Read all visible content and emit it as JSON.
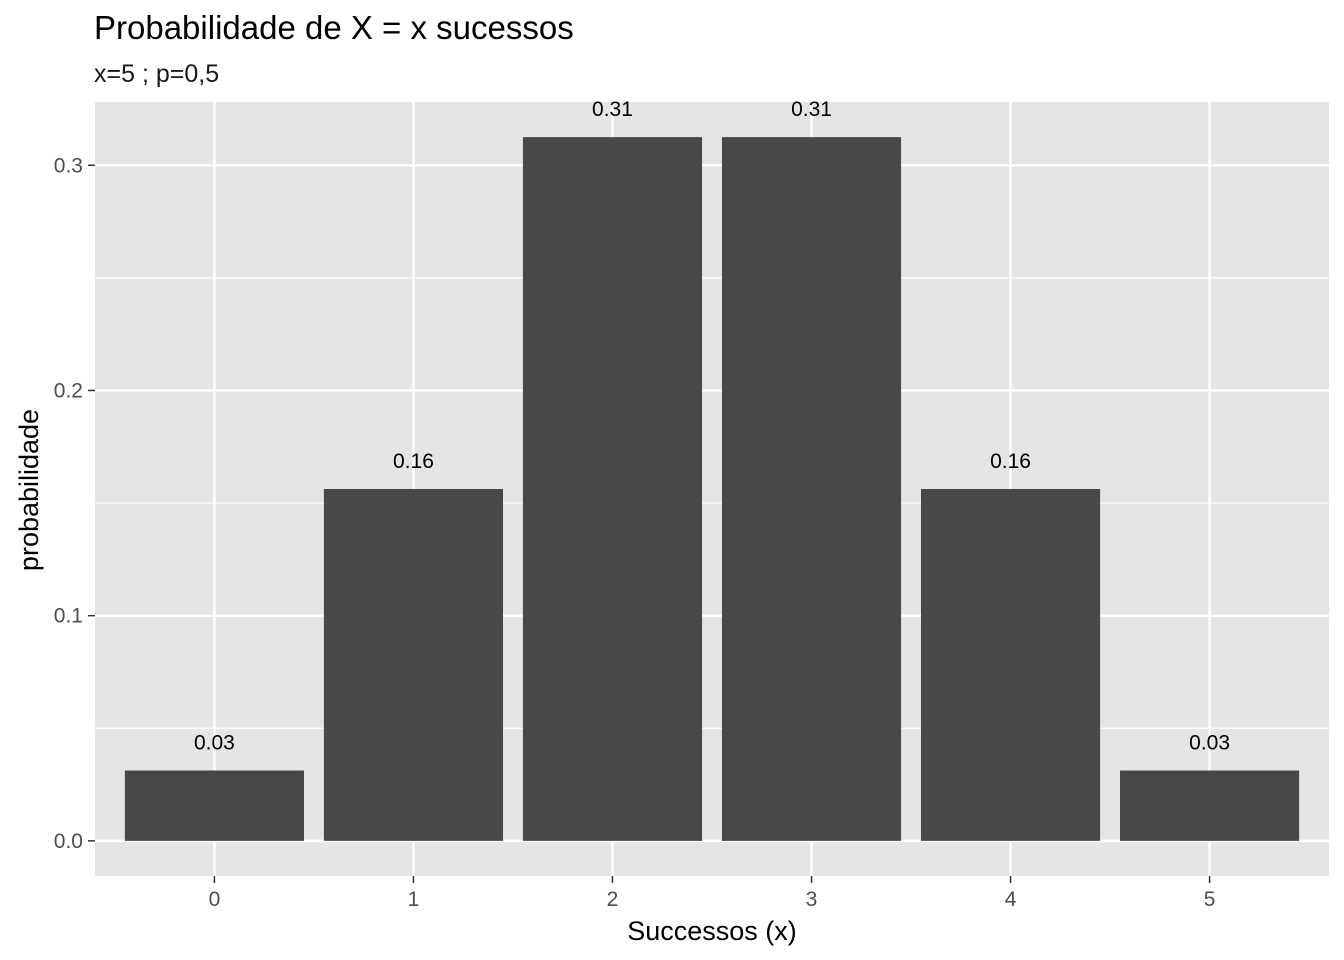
{
  "chart_data": {
    "type": "bar",
    "title": "Probabilidade de X = x sucessos",
    "subtitle": "x=5 ; p=0,5",
    "xlabel": "Successos (x)",
    "ylabel": "probabilidade",
    "categories": [
      "0",
      "1",
      "2",
      "3",
      "4",
      "5"
    ],
    "values": [
      0.03125,
      0.15625,
      0.3125,
      0.3125,
      0.15625,
      0.03125
    ],
    "data_labels": [
      "0.03",
      "0.16",
      "0.31",
      "0.31",
      "0.16",
      "0.03"
    ],
    "y_ticks": [
      0.0,
      0.1,
      0.2,
      0.3
    ],
    "y_tick_labels": [
      "0.0",
      "0.1",
      "0.2",
      "0.3"
    ],
    "ylim": [
      -0.0156,
      0.3281
    ],
    "grid": true,
    "colors": {
      "panel_background": "#e5e5e5",
      "grid_line": "#ffffff",
      "bar_fill": "#484848",
      "tick_mark": "#333333"
    }
  }
}
